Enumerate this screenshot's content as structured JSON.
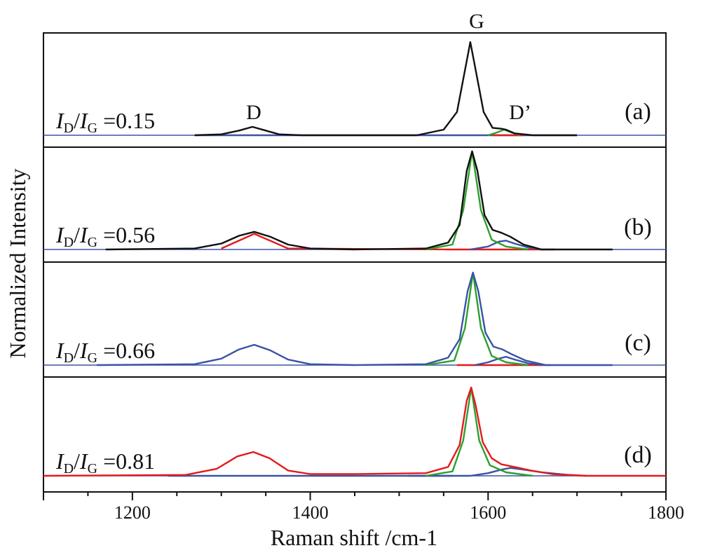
{
  "chart_data": {
    "type": "line",
    "xlabel": "Raman shift /cm-1",
    "ylabel": "Normalized Intensity",
    "xlim": [
      1100,
      1800
    ],
    "x_ticks": [
      1200,
      1400,
      1600,
      1800
    ],
    "peak_labels": {
      "d": "D",
      "g": "G",
      "d_prime": "D’"
    },
    "ratio_label": {
      "italic_main": "I",
      "sub_d": "D",
      "slash": "/",
      "sub_g": "G",
      "eq": "="
    },
    "panels": [
      {
        "label": "(a)",
        "ratio": "0.15",
        "series": [
          {
            "color": "#111111",
            "x": [
              1270,
              1300,
              1320,
              1335,
              1350,
              1365,
              1390,
              1520,
              1550,
              1565,
              1575,
              1580,
              1585,
              1595,
              1605,
              1615,
              1620,
              1630,
              1650,
              1700
            ],
            "y": [
              0.0,
              0.01,
              0.05,
              0.09,
              0.05,
              0.01,
              0.0,
              0.0,
              0.06,
              0.25,
              0.75,
              1.0,
              0.75,
              0.25,
              0.08,
              0.07,
              0.06,
              0.02,
              0.0,
              0.0
            ]
          },
          {
            "color": "#2ca02c",
            "x": [
              1600,
              1610,
              1618,
              1626,
              1636
            ],
            "y": [
              0.0,
              0.03,
              0.06,
              0.03,
              0.0
            ]
          },
          {
            "color": "#e31a1c",
            "x": [
              1605,
              1620,
              1640
            ],
            "y": [
              0.0,
              0.0,
              0.0
            ]
          },
          {
            "color": "#3a53a4",
            "x": [
              1270,
              1700
            ],
            "y": [
              0.0,
              0.0
            ]
          }
        ]
      },
      {
        "label": "(b)",
        "ratio": "0.56",
        "series": [
          {
            "color": "#111111",
            "x": [
              1170,
              1270,
              1300,
              1320,
              1337,
              1355,
              1375,
              1400,
              1450,
              1530,
              1555,
              1568,
              1576,
              1582,
              1588,
              1596,
              1605,
              1615,
              1625,
              1640,
              1660,
              1740
            ],
            "y": [
              0.0,
              0.01,
              0.06,
              0.14,
              0.18,
              0.13,
              0.05,
              0.01,
              0.0,
              0.01,
              0.07,
              0.25,
              0.8,
              1.0,
              0.8,
              0.35,
              0.2,
              0.17,
              0.13,
              0.05,
              0.0,
              0.0
            ]
          },
          {
            "color": "#2ca02c",
            "x": [
              1530,
              1560,
              1572,
              1582,
              1592,
              1604,
              1620,
              1645
            ],
            "y": [
              0.0,
              0.05,
              0.4,
              1.0,
              0.4,
              0.1,
              0.03,
              0.0
            ]
          },
          {
            "color": "#3a53a4",
            "x": [
              1580,
              1600,
              1612,
              1620,
              1630,
              1645,
              1660
            ],
            "y": [
              0.0,
              0.03,
              0.08,
              0.09,
              0.06,
              0.02,
              0.0
            ]
          },
          {
            "color": "#e31a1c",
            "x": [
              1300,
              1337,
              1375,
              1555,
              1620,
              1675
            ],
            "y": [
              0.01,
              0.16,
              0.01,
              0.0,
              0.0,
              0.0
            ]
          }
        ]
      },
      {
        "label": "(c)",
        "ratio": "0.66",
        "series": [
          {
            "color": "#3a53a4",
            "x": [
              1160,
              1270,
              1300,
              1320,
              1337,
              1355,
              1375,
              1400,
              1450,
              1530,
              1555,
              1568,
              1577,
              1583,
              1589,
              1597,
              1606,
              1616,
              1626,
              1642,
              1665,
              1740
            ],
            "y": [
              0.0,
              0.01,
              0.07,
              0.17,
              0.22,
              0.16,
              0.06,
              0.01,
              0.0,
              0.01,
              0.08,
              0.28,
              0.8,
              1.0,
              0.8,
              0.35,
              0.2,
              0.17,
              0.12,
              0.05,
              0.0,
              0.0
            ]
          },
          {
            "color": "#2ca02c",
            "x": [
              1530,
              1562,
              1574,
              1583,
              1592,
              1604,
              1620,
              1645
            ],
            "y": [
              0.0,
              0.05,
              0.4,
              1.0,
              0.4,
              0.1,
              0.03,
              0.0
            ]
          },
          {
            "color": "#3a53a4",
            "x": [
              1585,
              1600,
              1612,
              1620,
              1630,
              1645,
              1665
            ],
            "y": [
              0.0,
              0.03,
              0.07,
              0.09,
              0.06,
              0.02,
              0.0
            ]
          },
          {
            "color": "#e31a1c",
            "x": [
              1565,
              1620,
              1670
            ],
            "y": [
              0.0,
              0.0,
              0.0
            ]
          }
        ]
      },
      {
        "label": "(d)",
        "ratio": "0.81",
        "series": [
          {
            "color": "#e31a1c",
            "x": [
              1100,
              1260,
              1295,
              1318,
              1336,
              1354,
              1375,
              1400,
              1450,
              1530,
              1555,
              1568,
              1576,
              1581,
              1586,
              1594,
              1604,
              1615,
              1630,
              1648,
              1672,
              1710,
              1800
            ],
            "y": [
              0.0,
              0.01,
              0.08,
              0.22,
              0.27,
              0.2,
              0.06,
              0.02,
              0.02,
              0.03,
              0.1,
              0.35,
              0.85,
              1.0,
              0.8,
              0.38,
              0.2,
              0.13,
              0.1,
              0.06,
              0.02,
              0.0,
              0.0
            ]
          },
          {
            "color": "#2ca02c",
            "x": [
              1530,
              1560,
              1572,
              1581,
              1590,
              1602,
              1620,
              1650
            ],
            "y": [
              0.0,
              0.05,
              0.4,
              1.0,
              0.4,
              0.12,
              0.04,
              0.0
            ]
          },
          {
            "color": "#3a53a4",
            "x": [
              1240,
              1500,
              1580,
              1600,
              1615,
              1625,
              1640,
              1660,
              1690,
              1710
            ],
            "y": [
              0.0,
              0.0,
              0.0,
              0.03,
              0.07,
              0.09,
              0.07,
              0.04,
              0.01,
              0.0
            ]
          },
          {
            "color": "#3a53a4",
            "x": [
              1510,
              1560
            ],
            "y": [
              0.0,
              0.0
            ]
          }
        ]
      }
    ]
  }
}
